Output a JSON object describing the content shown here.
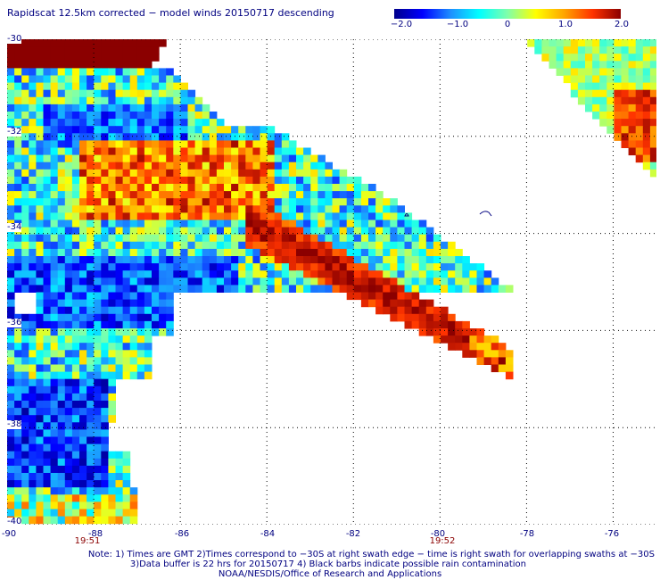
{
  "title": "Rapidscat 12.5km corrected − model winds 20150717 descending",
  "colorbar": {
    "labels": [
      "−2.0",
      "−1.0",
      "0",
      "1.0",
      "2.0"
    ],
    "stops": [
      "#00008b",
      "#0000ff",
      "#1e90ff",
      "#00ffff",
      "#7fffaa",
      "#ffff00",
      "#ffa500",
      "#ff3300",
      "#8b0000"
    ]
  },
  "chart_data": {
    "type": "heatmap",
    "variable": "wind speed difference (corrected − model)",
    "value_range": [
      -2.0,
      2.0
    ],
    "lat_range": [
      -40,
      -30
    ],
    "lon_range": [
      -90,
      -75
    ],
    "lat_ticks": [
      "-30",
      "-32",
      "-34",
      "-36",
      "-38",
      "-40"
    ],
    "lon_ticks": [
      "-90",
      "-88",
      "-86",
      "-84",
      "-82",
      "-80",
      "-78",
      "-76"
    ],
    "times": [
      {
        "label": "19:51",
        "lon": -88
      },
      {
        "label": "19:52",
        "lon": -80
      }
    ],
    "regions": [
      {
        "area": "north edge of main swath, lat -30 to -30.6, lon -90 to -86.3",
        "value": 2.0
      },
      {
        "area": "diagonal band from lon -87 lat -32 to lon -78.6 lat -38.4",
        "value": 1.5
      },
      {
        "area": "western interior, lat -31 to -39",
        "value": -0.5
      },
      {
        "area": "north-east swath corner, lat -30 to -33, lon -76.9 to -75",
        "value": 0.3
      }
    ]
  },
  "notes": {
    "line1": "Note: 1) Times are GMT 2)Times correspond to −30S at right swath edge − time is right swath for overlapping swaths at −30S",
    "line2": "3)Data buffer is 22 hrs for 20150717 4) Black barbs indicate possible rain contamination",
    "line3": "NOAA/NESDIS/Office of Research and Applications"
  }
}
